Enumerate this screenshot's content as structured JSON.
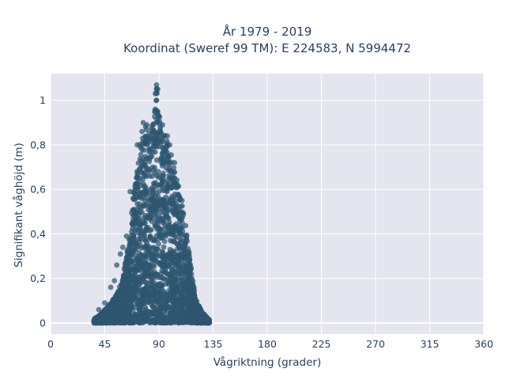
{
  "chart_data": {
    "type": "scatter",
    "title": "År 1979 - 2019",
    "subtitle": "Koordinat (Sweref 99 TM): E 224583, N 5994472",
    "xlabel": "Vågriktning (grader)",
    "ylabel": "Signifikant våghöjd (m)",
    "xlim": [
      0,
      360
    ],
    "ylim": [
      -0.05,
      1.12
    ],
    "x_ticks": [
      0,
      45,
      90,
      135,
      180,
      225,
      270,
      315,
      360
    ],
    "x_tick_labels": [
      "0",
      "45",
      "90",
      "135",
      "180",
      "225",
      "270",
      "315",
      "360"
    ],
    "y_ticks": [
      0,
      0.2,
      0.4,
      0.6,
      0.8,
      1.0
    ],
    "y_tick_labels": [
      "0",
      "0,2",
      "0,4",
      "0,6",
      "0,8",
      "1"
    ],
    "grid": true,
    "legend": "none",
    "marker_color": "#2e5670",
    "plot_background": "#e5e5f0",
    "envelope": [
      [
        36,
        0.02
      ],
      [
        40,
        0.03
      ],
      [
        45,
        0.06
      ],
      [
        50,
        0.09
      ],
      [
        55,
        0.13
      ],
      [
        60,
        0.2
      ],
      [
        63,
        0.3
      ],
      [
        66,
        0.42
      ],
      [
        68,
        0.55
      ],
      [
        70,
        0.62
      ],
      [
        72,
        0.72
      ],
      [
        74,
        0.8
      ],
      [
        77,
        0.86
      ],
      [
        80,
        0.9
      ],
      [
        83,
        0.88
      ],
      [
        86,
        0.9
      ],
      [
        88,
        1.07
      ],
      [
        90,
        0.95
      ],
      [
        92,
        0.88
      ],
      [
        95,
        0.85
      ],
      [
        98,
        0.8
      ],
      [
        100,
        0.76
      ],
      [
        103,
        0.7
      ],
      [
        106,
        0.62
      ],
      [
        109,
        0.56
      ],
      [
        112,
        0.45
      ],
      [
        114,
        0.36
      ],
      [
        116,
        0.28
      ],
      [
        118,
        0.2
      ],
      [
        120,
        0.12
      ],
      [
        122,
        0.09
      ],
      [
        126,
        0.05
      ],
      [
        129,
        0.03
      ],
      [
        132,
        0.015
      ]
    ],
    "outliers": [
      [
        88,
        1.07
      ],
      [
        89,
        1.05
      ],
      [
        87,
        1.03
      ],
      [
        88,
        1.0
      ],
      [
        87,
        0.96
      ],
      [
        89,
        0.95
      ],
      [
        90,
        0.93
      ],
      [
        77,
        0.9
      ],
      [
        80,
        0.89
      ],
      [
        93,
        0.89
      ],
      [
        72,
        0.8
      ],
      [
        76,
        0.86
      ],
      [
        66,
        0.59
      ],
      [
        63,
        0.39
      ],
      [
        60,
        0.34
      ],
      [
        58,
        0.31
      ],
      [
        55,
        0.26
      ],
      [
        53,
        0.19
      ],
      [
        50,
        0.16
      ],
      [
        45,
        0.09
      ],
      [
        40,
        0.06
      ],
      [
        37,
        0.02
      ],
      [
        131,
        0.01
      ],
      [
        127,
        0.02
      ],
      [
        125,
        0.03
      ],
      [
        121,
        0.08
      ],
      [
        117,
        0.22
      ],
      [
        97,
        0.84
      ],
      [
        99,
        0.8
      ],
      [
        103,
        0.72
      ]
    ]
  }
}
